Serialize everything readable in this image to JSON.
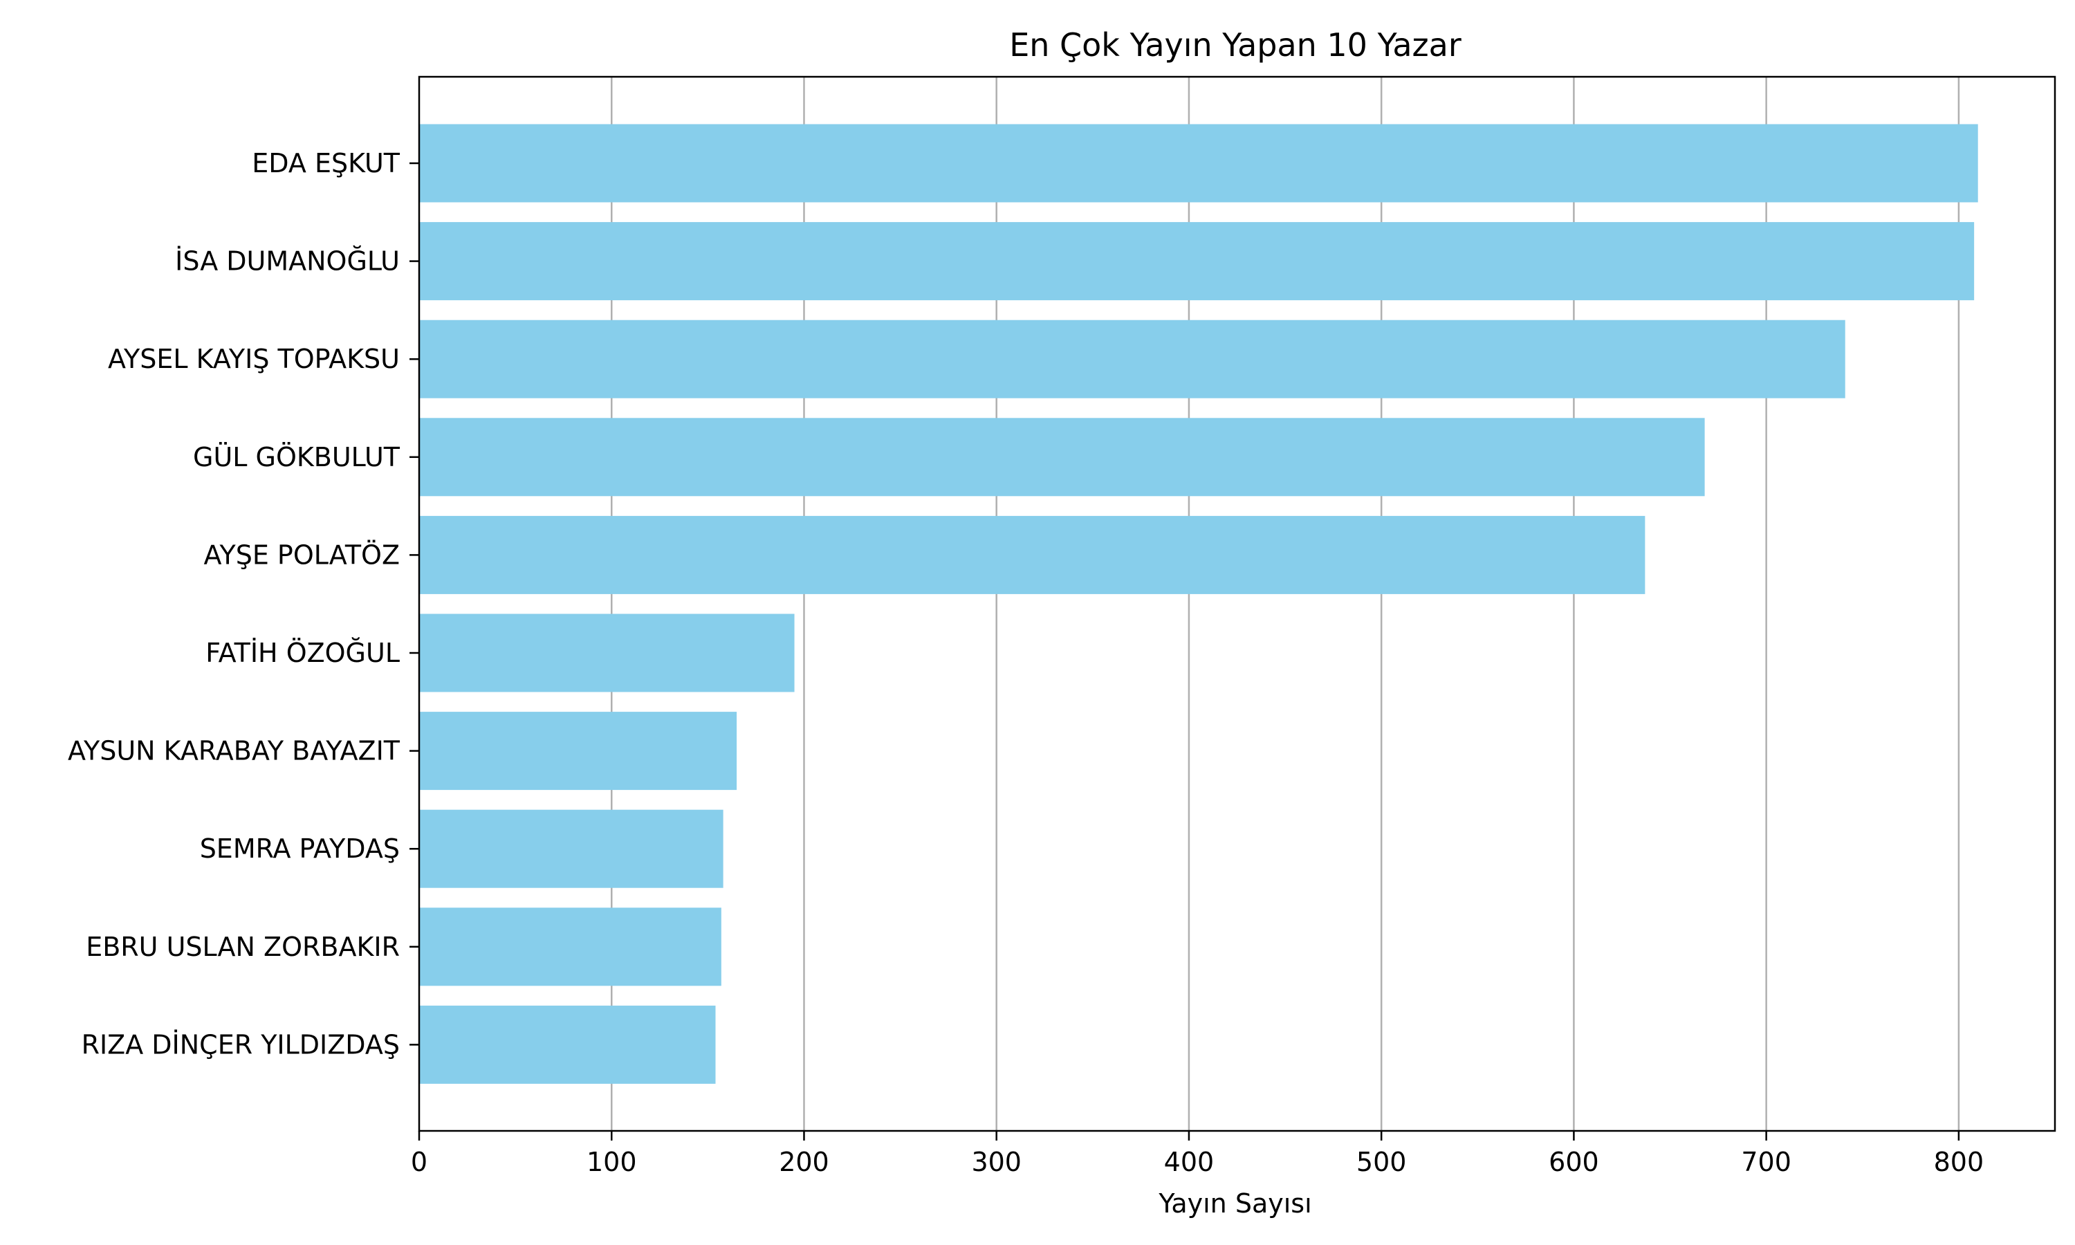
{
  "chart_data": {
    "type": "bar",
    "orientation": "horizontal",
    "title": "En Çok Yayın Yapan 10 Yazar",
    "xlabel": "Yayın Sayısı",
    "ylabel": "",
    "categories": [
      "EDA EŞKUT",
      "İSA DUMANOĞLU",
      "AYSEL KAYIŞ TOPAKSU",
      "GÜL GÖKBULUT",
      "AYŞE POLATÖZ",
      "FATİH ÖZOĞUL",
      "AYSUN KARABAY BAYAZIT",
      "SEMRA PAYDAŞ",
      "EBRU USLAN ZORBAKIR",
      "RIZA DİNÇER YILDIZDAŞ"
    ],
    "values": [
      810,
      808,
      741,
      668,
      637,
      195,
      165,
      158,
      157,
      154
    ],
    "xlim": [
      0,
      850
    ],
    "xticks": [
      0,
      100,
      200,
      300,
      400,
      500,
      600,
      700,
      800
    ],
    "grid": "vertical",
    "bar_color": "#87ceeb",
    "grid_color": "#b0b0b0",
    "legend": "none"
  }
}
